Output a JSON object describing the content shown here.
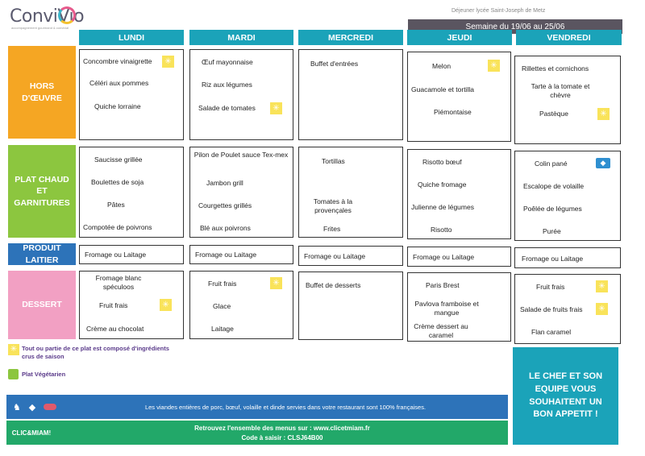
{
  "header": {
    "logo": "ConviVio",
    "logo_sub": "accompagnement gourmand & convivial",
    "week_top": "Déjeuner lycée Saint-Joseph de Metz",
    "week": "Semaine du 19/06 au 25/06"
  },
  "days": [
    "LUNDI",
    "MARDI",
    "MERCREDI",
    "JEUDI",
    "VENDREDI"
  ],
  "categories": {
    "hors": "HORS D'ŒUVRE",
    "plat": "PLAT CHAUD ET GARNITURES",
    "laitier": "PRODUIT LAITIER",
    "dessert": "DESSERT"
  },
  "hors": {
    "lundi": [
      "Concombre vinaigrette",
      "Céléri aux pommes",
      "Quiche lorraine"
    ],
    "mardi": [
      "Œuf mayonnaise",
      "Riz aux légumes",
      "Salade de tomates"
    ],
    "mercredi": [
      "Buffet d'entrées"
    ],
    "jeudi": [
      "Melon",
      "Guacamole et tortilla",
      "Piémontaise"
    ],
    "vendredi": [
      "Rillettes et cornichons",
      "Tarte à la tomate et chèvre",
      "Pastèque"
    ]
  },
  "plat": {
    "lundi": [
      "Saucisse grillée",
      "Boulettes de soja",
      "Pâtes",
      "Compotée de poivrons"
    ],
    "mardi": [
      "Pilon de Poulet sauce Tex-mex",
      "Jambon grill",
      "Courgettes grillés",
      "Blé aux poivrons"
    ],
    "mercredi": [
      "Tortillas",
      "Tomates à la provençales",
      "Frites"
    ],
    "jeudi": [
      "Risotto bœuf",
      "Quiche fromage",
      "Julienne de légumes",
      "Risotto"
    ],
    "vendredi": [
      "Colin pané",
      "Escalope de volaille",
      "Poêlée de légumes",
      "Purée"
    ]
  },
  "laitier": {
    "lundi": "Fromage ou Laitage",
    "mardi": "Fromage ou Laitage",
    "mercredi": "Fromage ou Laitage",
    "jeudi": "Fromage ou Laitage",
    "vendredi": "Fromage ou Laitage"
  },
  "dessert": {
    "lundi": [
      "Fromage blanc spéculoos",
      "Fruit frais",
      "Crème au chocolat"
    ],
    "mardi": [
      "Fruit frais",
      "Glace",
      "Laitage"
    ],
    "mercredi": [
      "Buffet de desserts"
    ],
    "jeudi": [
      "Paris Brest",
      "Pavlova framboise et mangue",
      "Crème dessert au caramel"
    ],
    "vendredi": [
      "Fruit frais",
      "Salade de fruits frais",
      "Flan caramel"
    ]
  },
  "legend": {
    "saison": "Tout ou partie de ce plat est composé d'ingrédients crus de saison",
    "vege": "Plat Végétarien"
  },
  "footer": {
    "viandes": "Les viandes entières de porc, bœuf, volaille et dinde servies dans votre restaurant sont 100% françaises.",
    "brand": "CLIC&MIAM!",
    "menus": "Retrouvez l'ensemble des menus sur : www.clicetmiam.fr",
    "code": "Code à saisir : CLSJ64B00",
    "chef": "LE CHEF ET SON EQUIPE VOUS SOUHAITENT UN BON APPETIT !"
  },
  "colors": {
    "teal": "#1ba3b9",
    "orange": "#f5a623",
    "green": "#8cc63f",
    "blue": "#2d73b9",
    "pink": "#f2a0c3",
    "sun": "#f9e35a"
  }
}
